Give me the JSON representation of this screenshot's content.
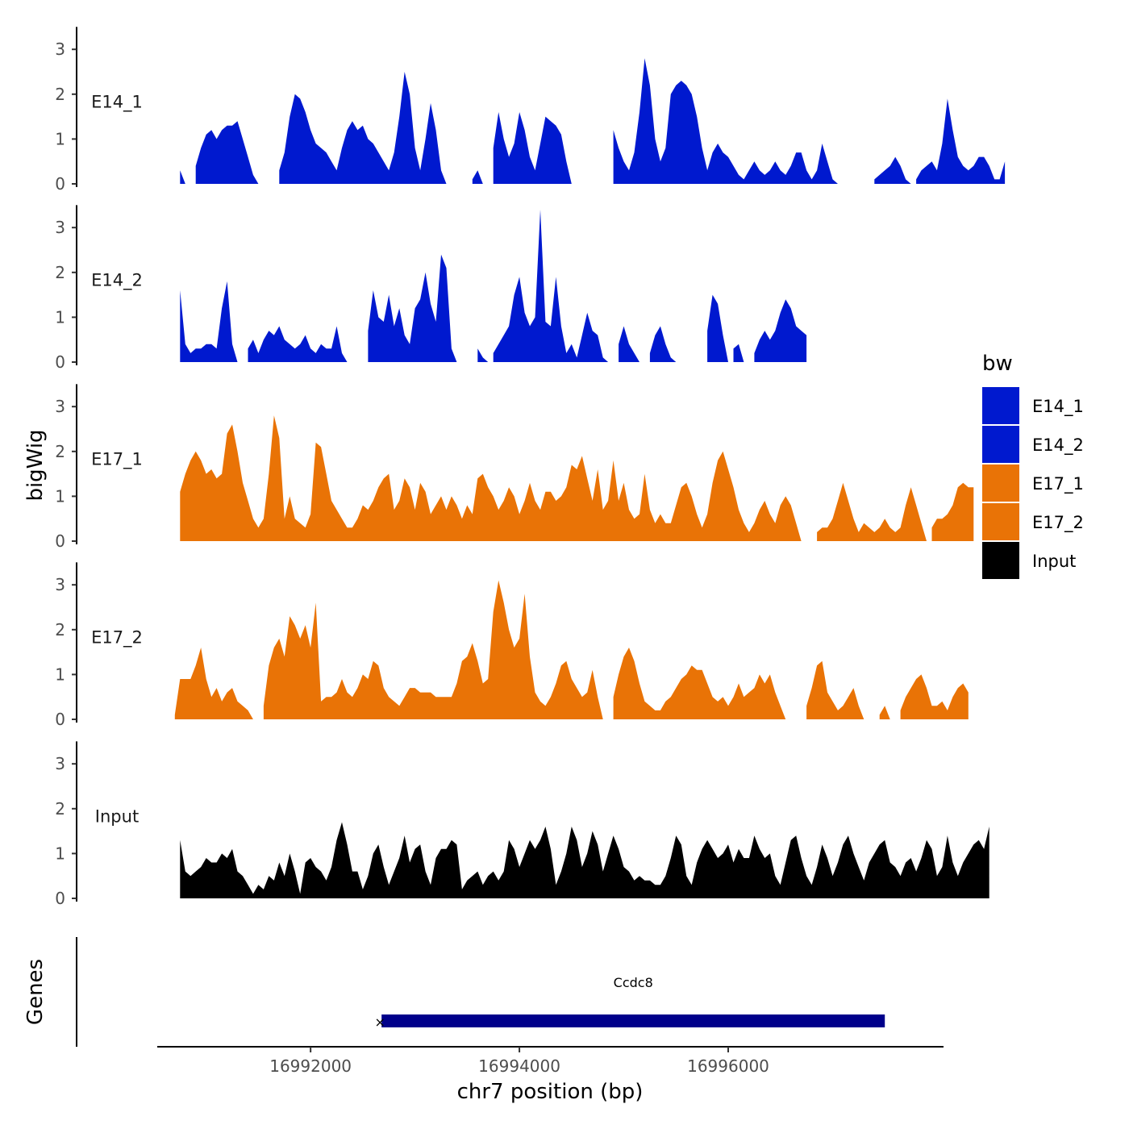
{
  "chart_data": {
    "type": "area",
    "title": "",
    "xlabel": "chr7 position (bp)",
    "ylabel": "bigWig",
    "genes_label": "Genes",
    "xlim": [
      16990400,
      16997900
    ],
    "ylim": [
      0,
      3.5
    ],
    "x_ticks": [
      16992000,
      16994000,
      16996000
    ],
    "x_tick_labels": [
      "16992000",
      "16994000",
      "16996000"
    ],
    "y_ticks": [
      0,
      1,
      2,
      3
    ],
    "y_tick_labels": [
      "0",
      "1",
      "2",
      "3"
    ],
    "legend": {
      "title": "bw",
      "entries": [
        {
          "label": "E14_1",
          "color": "#0019cf"
        },
        {
          "label": "E14_2",
          "color": "#0019cf"
        },
        {
          "label": "E17_1",
          "color": "#e97306"
        },
        {
          "label": "E17_2",
          "color": "#e97306"
        },
        {
          "label": "Input",
          "color": "#000000"
        }
      ]
    },
    "gene": {
      "name": "Ccdc8",
      "start": 16992680,
      "end": 16997500,
      "strand": "+",
      "color": "#00008b"
    },
    "series": [
      {
        "name": "E14_1",
        "color": "#0019cf",
        "x_start": 16990750,
        "x_step": 50,
        "values": [
          0.3,
          0,
          0,
          0.4,
          0.8,
          1.1,
          1.2,
          1.0,
          1.2,
          1.3,
          1.3,
          1.4,
          1.0,
          0.6,
          0.2,
          0,
          0,
          0,
          0,
          0.3,
          0.7,
          1.5,
          2.0,
          1.9,
          1.6,
          1.2,
          0.9,
          0.8,
          0.7,
          0.5,
          0.3,
          0.8,
          1.2,
          1.4,
          1.2,
          1.3,
          1.0,
          0.9,
          0.7,
          0.5,
          0.3,
          0.7,
          1.5,
          2.5,
          2.0,
          0.8,
          0.3,
          1.0,
          1.8,
          1.2,
          0.3,
          0,
          0,
          0,
          0,
          0,
          0.1,
          0.3,
          0,
          0,
          0.8,
          1.6,
          1.0,
          0.6,
          0.9,
          1.6,
          1.2,
          0.6,
          0.3,
          0.9,
          1.5,
          1.4,
          1.3,
          1.1,
          0.5,
          0,
          0,
          0,
          0,
          0,
          0,
          0,
          0,
          1.2,
          0.8,
          0.5,
          0.3,
          0.7,
          1.6,
          2.8,
          2.2,
          1.0,
          0.5,
          0.8,
          2.0,
          2.2,
          2.3,
          2.2,
          2.0,
          1.5,
          0.8,
          0.3,
          0.7,
          0.9,
          0.7,
          0.6,
          0.4,
          0.2,
          0.1,
          0.3,
          0.5,
          0.3,
          0.2,
          0.3,
          0.5,
          0.3,
          0.2,
          0.4,
          0.7,
          0.7,
          0.3,
          0.1,
          0.3,
          0.9,
          0.5,
          0.1,
          0,
          0,
          0,
          0,
          0,
          0,
          0,
          0.1,
          0.2,
          0.3,
          0.4,
          0.6,
          0.4,
          0.1,
          0,
          0.1,
          0.3,
          0.4,
          0.5,
          0.3,
          0.9,
          1.9,
          1.2,
          0.6,
          0.4,
          0.3,
          0.4,
          0.6,
          0.6,
          0.4,
          0.1,
          0.1,
          0.5
        ]
      },
      {
        "name": "E14_2",
        "color": "#0019cf",
        "x_start": 16990750,
        "x_step": 50,
        "values": [
          1.6,
          0.4,
          0.2,
          0.3,
          0.3,
          0.4,
          0.4,
          0.3,
          1.2,
          1.8,
          0.4,
          0,
          0,
          0.3,
          0.5,
          0.2,
          0.5,
          0.7,
          0.6,
          0.8,
          0.5,
          0.4,
          0.3,
          0.4,
          0.6,
          0.3,
          0.2,
          0.4,
          0.3,
          0.3,
          0.8,
          0.2,
          0,
          0,
          0,
          0,
          0.7,
          1.6,
          1.0,
          0.9,
          1.5,
          0.8,
          1.2,
          0.6,
          0.4,
          1.2,
          1.4,
          2.0,
          1.3,
          0.9,
          2.4,
          2.1,
          0.3,
          0,
          0,
          0,
          0,
          0.3,
          0.1,
          0,
          0.2,
          0.4,
          0.6,
          0.8,
          1.5,
          1.9,
          1.1,
          0.8,
          1.0,
          3.4,
          0.9,
          0.8,
          1.9,
          0.8,
          0.2,
          0.4,
          0.1,
          0.6,
          1.1,
          0.7,
          0.6,
          0.1,
          0,
          0,
          0.4,
          0.8,
          0.4,
          0.2,
          0,
          0,
          0.2,
          0.6,
          0.8,
          0.4,
          0.1,
          0,
          0,
          0,
          0,
          0,
          0,
          0.7,
          1.5,
          1.3,
          0.6,
          0,
          0.3,
          0.4,
          0,
          0,
          0.2,
          0.5,
          0.7,
          0.5,
          0.7,
          1.1,
          1.4,
          1.2,
          0.8,
          0.7,
          0.6
        ]
      },
      {
        "name": "E17_1",
        "color": "#e97306",
        "x_start": 16990750,
        "x_step": 50,
        "values": [
          1.1,
          1.5,
          1.8,
          2.0,
          1.8,
          1.5,
          1.6,
          1.4,
          1.5,
          2.4,
          2.6,
          2.0,
          1.3,
          0.9,
          0.5,
          0.3,
          0.5,
          1.5,
          2.8,
          2.3,
          0.5,
          1.0,
          0.5,
          0.4,
          0.3,
          0.6,
          2.2,
          2.1,
          1.5,
          0.9,
          0.7,
          0.5,
          0.3,
          0.3,
          0.5,
          0.8,
          0.7,
          0.9,
          1.2,
          1.4,
          1.5,
          0.7,
          0.9,
          1.4,
          1.2,
          0.7,
          1.3,
          1.1,
          0.6,
          0.8,
          1.0,
          0.7,
          1.0,
          0.8,
          0.5,
          0.8,
          0.6,
          1.4,
          1.5,
          1.2,
          1.0,
          0.7,
          0.9,
          1.2,
          1.0,
          0.6,
          0.9,
          1.3,
          0.9,
          0.7,
          1.1,
          1.1,
          0.9,
          1.0,
          1.2,
          1.7,
          1.6,
          1.9,
          1.4,
          0.9,
          1.6,
          0.7,
          0.9,
          1.8,
          0.9,
          1.3,
          0.7,
          0.5,
          0.6,
          1.5,
          0.7,
          0.4,
          0.6,
          0.4,
          0.4,
          0.8,
          1.2,
          1.3,
          1.0,
          0.6,
          0.3,
          0.6,
          1.3,
          1.8,
          2.0,
          1.6,
          1.2,
          0.7,
          0.4,
          0.2,
          0.4,
          0.7,
          0.9,
          0.6,
          0.4,
          0.8,
          1.0,
          0.8,
          0.4,
          0,
          0,
          0,
          0.2,
          0.3,
          0.3,
          0.5,
          0.9,
          1.3,
          0.9,
          0.5,
          0.2,
          0.4,
          0.3,
          0.2,
          0.3,
          0.5,
          0.3,
          0.2,
          0.3,
          0.8,
          1.2,
          0.8,
          0.4,
          0,
          0.3,
          0.5,
          0.5,
          0.6,
          0.8,
          1.2,
          1.3,
          1.2,
          1.2
        ]
      },
      {
        "name": "E17_2",
        "color": "#e97306",
        "x_start": 16990700,
        "x_step": 50,
        "values": [
          0.1,
          0.9,
          0.9,
          0.9,
          1.2,
          1.6,
          0.9,
          0.5,
          0.7,
          0.4,
          0.6,
          0.7,
          0.4,
          0.3,
          0.2,
          0,
          0,
          0.3,
          1.2,
          1.6,
          1.8,
          1.4,
          2.3,
          2.1,
          1.8,
          2.1,
          1.6,
          2.6,
          0.4,
          0.5,
          0.5,
          0.6,
          0.9,
          0.6,
          0.5,
          0.7,
          1.0,
          0.9,
          1.3,
          1.2,
          0.7,
          0.5,
          0.4,
          0.3,
          0.5,
          0.7,
          0.7,
          0.6,
          0.6,
          0.6,
          0.5,
          0.5,
          0.5,
          0.5,
          0.8,
          1.3,
          1.4,
          1.7,
          1.3,
          0.8,
          0.9,
          2.4,
          3.1,
          2.6,
          2.0,
          1.6,
          1.8,
          2.8,
          1.4,
          0.6,
          0.4,
          0.3,
          0.5,
          0.8,
          1.2,
          1.3,
          0.9,
          0.7,
          0.5,
          0.6,
          1.1,
          0.5,
          0,
          0,
          0.5,
          1.0,
          1.4,
          1.6,
          1.3,
          0.8,
          0.4,
          0.3,
          0.2,
          0.2,
          0.4,
          0.5,
          0.7,
          0.9,
          1.0,
          1.2,
          1.1,
          1.1,
          0.8,
          0.5,
          0.4,
          0.5,
          0.3,
          0.5,
          0.8,
          0.5,
          0.6,
          0.7,
          1.0,
          0.8,
          1.0,
          0.6,
          0.3,
          0,
          0,
          0,
          0,
          0.3,
          0.7,
          1.2,
          1.3,
          0.6,
          0.4,
          0.2,
          0.3,
          0.5,
          0.7,
          0.3,
          0,
          0,
          0,
          0.1,
          0.3,
          0,
          0,
          0.2,
          0.5,
          0.7,
          0.9,
          1.0,
          0.7,
          0.3,
          0.3,
          0.4,
          0.2,
          0.5,
          0.7,
          0.8,
          0.6
        ]
      },
      {
        "name": "Input",
        "color": "#000000",
        "x_start": 16990750,
        "x_step": 50,
        "values": [
          1.3,
          0.6,
          0.5,
          0.6,
          0.7,
          0.9,
          0.8,
          0.8,
          1.0,
          0.9,
          1.1,
          0.6,
          0.5,
          0.3,
          0.1,
          0.3,
          0.2,
          0.5,
          0.4,
          0.8,
          0.5,
          1.0,
          0.6,
          0.1,
          0.8,
          0.9,
          0.7,
          0.6,
          0.4,
          0.7,
          1.3,
          1.7,
          1.2,
          0.6,
          0.6,
          0.2,
          0.5,
          1.0,
          1.2,
          0.7,
          0.3,
          0.6,
          0.9,
          1.4,
          0.8,
          1.1,
          1.2,
          0.6,
          0.3,
          0.9,
          1.1,
          1.1,
          1.3,
          1.2,
          0.2,
          0.4,
          0.5,
          0.6,
          0.3,
          0.5,
          0.6,
          0.4,
          0.6,
          1.3,
          1.1,
          0.7,
          1.0,
          1.3,
          1.1,
          1.3,
          1.6,
          1.1,
          0.3,
          0.6,
          1.0,
          1.6,
          1.3,
          0.7,
          1.0,
          1.5,
          1.2,
          0.6,
          1.0,
          1.4,
          1.1,
          0.7,
          0.6,
          0.4,
          0.5,
          0.4,
          0.4,
          0.3,
          0.3,
          0.5,
          0.9,
          1.4,
          1.2,
          0.5,
          0.3,
          0.8,
          1.1,
          1.3,
          1.1,
          0.9,
          1.0,
          1.2,
          0.8,
          1.1,
          0.9,
          0.9,
          1.4,
          1.1,
          0.9,
          1.0,
          0.5,
          0.3,
          0.8,
          1.3,
          1.4,
          0.9,
          0.5,
          0.3,
          0.7,
          1.2,
          0.9,
          0.5,
          0.8,
          1.2,
          1.4,
          1.0,
          0.7,
          0.4,
          0.8,
          1.0,
          1.2,
          1.3,
          0.8,
          0.7,
          0.5,
          0.8,
          0.9,
          0.6,
          0.9,
          1.3,
          1.1,
          0.5,
          0.7,
          1.4,
          0.8,
          0.5,
          0.8,
          1.0,
          1.2,
          1.3,
          1.1,
          1.6
        ]
      }
    ]
  }
}
